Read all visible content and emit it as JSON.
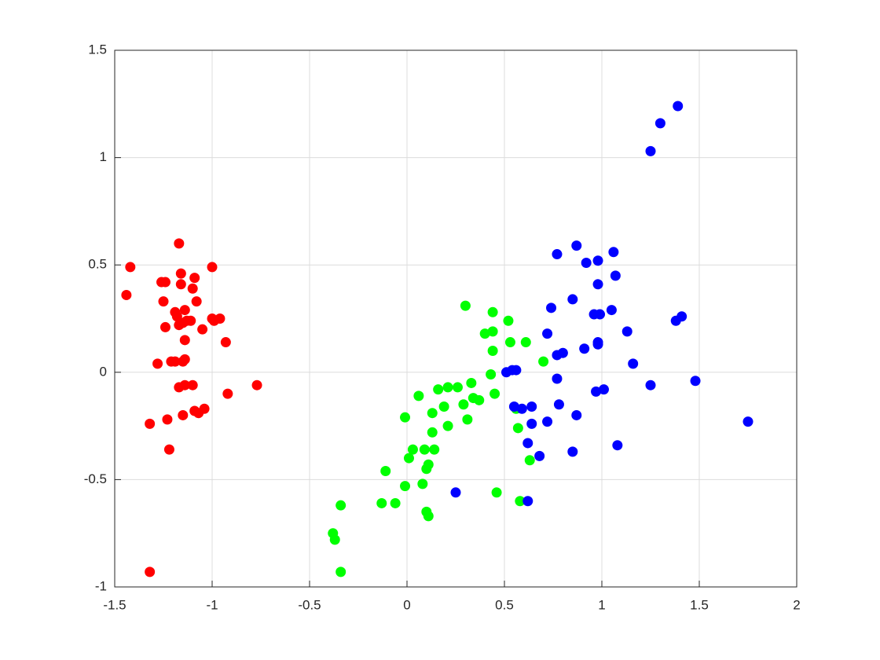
{
  "chart_data": {
    "type": "scatter",
    "xlim": [
      -1.5,
      2
    ],
    "ylim": [
      -1,
      1.5
    ],
    "xticks": [
      -1.5,
      -1,
      -0.5,
      0,
      0.5,
      1,
      1.5,
      2
    ],
    "yticks": [
      -1,
      -0.5,
      0,
      0.5,
      1,
      1.5
    ],
    "grid": true,
    "series": [
      {
        "color": "#ff0000",
        "x": [
          -1.42,
          -1.44,
          -1.17,
          -1.16,
          -1.09,
          -1.0,
          -1.26,
          -1.24,
          -1.16,
          -1.1,
          -1.19,
          -1.14,
          -1.08,
          -1.18,
          -1.13,
          -1.11,
          -1.17,
          -1.24,
          -1.15,
          -1.05,
          -1.0,
          -0.99,
          -0.96,
          -0.93,
          -1.14,
          -1.21,
          -1.19,
          -1.14,
          -1.15,
          -1.28,
          -0.77,
          -0.92,
          -1.17,
          -1.14,
          -1.1,
          -1.04,
          -1.07,
          -1.09,
          -1.15,
          -1.23,
          -1.32,
          -1.22,
          -1.32,
          -1.25
        ],
        "y": [
          0.49,
          0.36,
          0.6,
          0.46,
          0.44,
          0.49,
          0.42,
          0.42,
          0.41,
          0.39,
          0.28,
          0.29,
          0.33,
          0.26,
          0.24,
          0.24,
          0.22,
          0.21,
          0.23,
          0.2,
          0.25,
          0.24,
          0.25,
          0.14,
          0.15,
          0.05,
          0.05,
          0.06,
          0.05,
          0.04,
          -0.06,
          -0.1,
          -0.07,
          -0.06,
          -0.06,
          -0.17,
          -0.19,
          -0.18,
          -0.2,
          -0.22,
          -0.24,
          -0.36,
          -0.93,
          0.33
        ]
      },
      {
        "color": "#00ff00",
        "x": [
          0.3,
          0.44,
          0.52,
          0.44,
          0.4,
          0.53,
          0.44,
          0.61,
          0.7,
          0.43,
          0.33,
          0.26,
          0.21,
          0.16,
          0.45,
          0.06,
          0.34,
          0.37,
          0.29,
          0.19,
          0.56,
          0.13,
          -0.01,
          0.31,
          0.21,
          0.13,
          0.57,
          0.03,
          0.14,
          0.09,
          0.01,
          0.63,
          0.11,
          0.1,
          -0.11,
          -0.01,
          0.08,
          -0.13,
          -0.06,
          -0.34,
          0.46,
          0.58,
          0.1,
          0.11,
          -0.38,
          -0.37,
          -0.34
        ],
        "y": [
          0.31,
          0.28,
          0.24,
          0.19,
          0.18,
          0.14,
          0.1,
          0.14,
          0.05,
          -0.01,
          -0.05,
          -0.07,
          -0.07,
          -0.08,
          -0.1,
          -0.11,
          -0.12,
          -0.13,
          -0.15,
          -0.16,
          -0.17,
          -0.19,
          -0.21,
          -0.22,
          -0.25,
          -0.28,
          -0.26,
          -0.36,
          -0.36,
          -0.36,
          -0.4,
          -0.41,
          -0.43,
          -0.45,
          -0.46,
          -0.53,
          -0.52,
          -0.61,
          -0.61,
          -0.62,
          -0.56,
          -0.6,
          -0.65,
          -0.67,
          -0.75,
          -0.78,
          -0.93
        ]
      },
      {
        "color": "#0000ff",
        "x": [
          1.39,
          1.3,
          1.25,
          0.87,
          1.06,
          0.77,
          0.98,
          0.92,
          1.07,
          0.98,
          0.85,
          0.74,
          1.05,
          0.96,
          0.99,
          1.41,
          1.38,
          1.13,
          0.72,
          0.91,
          0.98,
          0.98,
          0.8,
          0.77,
          1.16,
          0.56,
          0.54,
          0.51,
          0.77,
          1.48,
          1.25,
          0.97,
          1.01,
          1.75,
          0.55,
          0.59,
          0.64,
          0.78,
          0.87,
          0.64,
          0.72,
          1.08,
          0.62,
          0.85,
          0.68,
          0.25,
          0.62
        ],
        "y": [
          1.24,
          1.16,
          1.03,
          0.59,
          0.56,
          0.55,
          0.52,
          0.51,
          0.45,
          0.41,
          0.34,
          0.3,
          0.29,
          0.27,
          0.27,
          0.26,
          0.24,
          0.19,
          0.18,
          0.11,
          0.14,
          0.13,
          0.09,
          0.08,
          0.04,
          0.01,
          0.01,
          0.0,
          -0.03,
          -0.04,
          -0.06,
          -0.09,
          -0.08,
          -0.23,
          -0.16,
          -0.17,
          -0.16,
          -0.15,
          -0.2,
          -0.24,
          -0.23,
          -0.34,
          -0.33,
          -0.37,
          -0.39,
          -0.56,
          -0.6
        ]
      }
    ]
  }
}
